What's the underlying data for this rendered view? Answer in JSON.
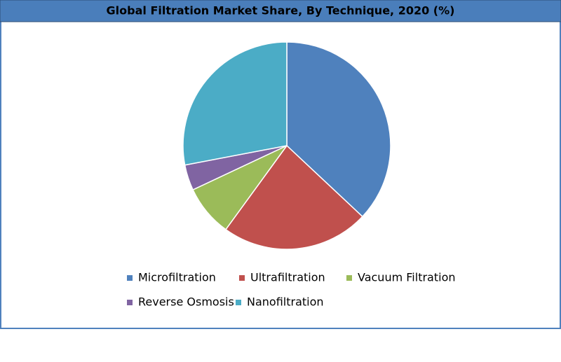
{
  "chart_data": {
    "type": "pie",
    "title": "Global Filtration Market Share, By Technique, 2020 (%)",
    "categories": [
      "Microfiltration",
      "Ultrafiltration",
      "Vacuum Filtration",
      "Reverse Osmosis",
      "Nanofiltration"
    ],
    "values": [
      37,
      23,
      8,
      4,
      28
    ],
    "colors": [
      "#4f81bd",
      "#c0504d",
      "#9bbb59",
      "#8064a2",
      "#4bacc6"
    ]
  }
}
